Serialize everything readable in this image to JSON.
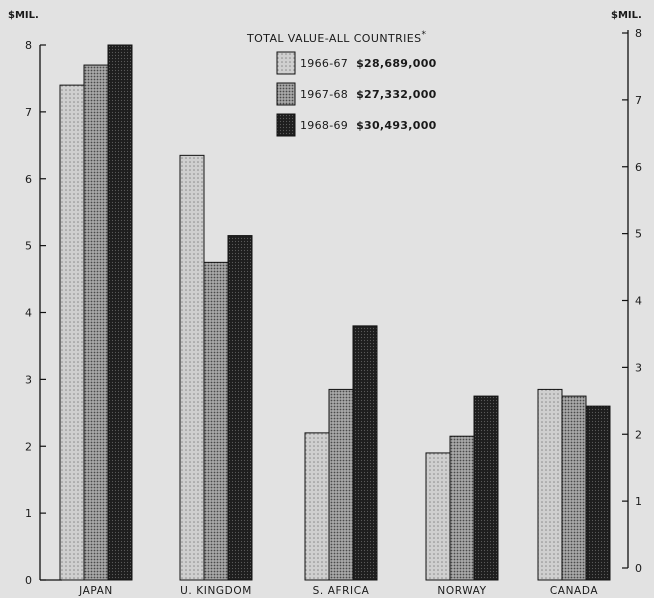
{
  "chart_data": {
    "type": "bar",
    "title": "",
    "ylabel_left": "$MIL.",
    "ylabel_right": "$MIL.",
    "ylim": [
      0,
      8
    ],
    "yticks": [
      0,
      1,
      2,
      3,
      4,
      5,
      6,
      7,
      8
    ],
    "categories": [
      "JAPAN",
      "U. KINGDOM",
      "S. AFRICA",
      "NORWAY",
      "CANADA"
    ],
    "legend": {
      "title": "TOTAL VALUE-ALL COUNTRIES",
      "title_mark": "*",
      "placement": "top-center"
    },
    "series": [
      {
        "name": "1966-67",
        "total": "$28,689,000",
        "color": "#c4c4c4",
        "values": [
          7.4,
          6.35,
          2.2,
          1.9,
          2.85
        ]
      },
      {
        "name": "1967-68",
        "total": "$27,332,000",
        "color": "#8f8f8f",
        "values": [
          7.7,
          4.75,
          2.85,
          2.15,
          2.75
        ]
      },
      {
        "name": "1968-69",
        "total": "$30,493,000",
        "color": "#222222",
        "values": [
          8.0,
          5.15,
          3.8,
          2.75,
          2.6
        ]
      }
    ]
  }
}
